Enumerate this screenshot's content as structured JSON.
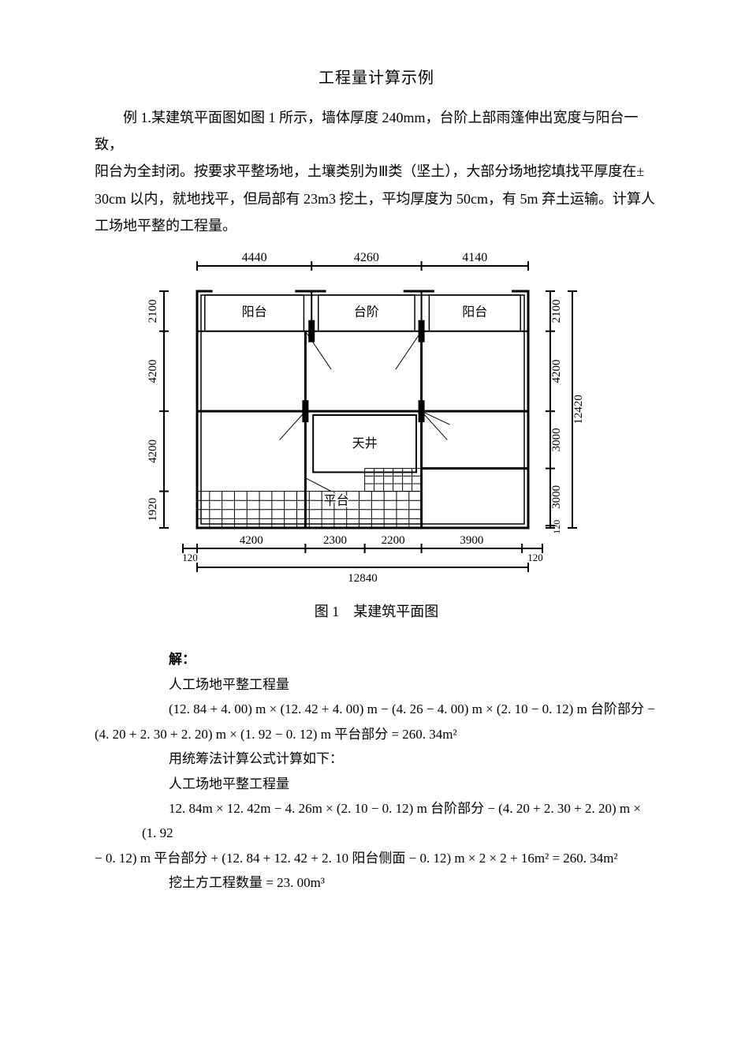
{
  "title": "工程量计算示例",
  "problem": {
    "p1": "例 1.某建筑平面图如图 1 所示，墙体厚度 240mm，台阶上部雨篷伸出宽度与阳台一致，",
    "p2": "阳台为全封闭。按要求平整场地，土壤类别为Ⅲ类（坚土），大部分场地挖填找平厚度在±",
    "p3": "30cm 以内，就地找平，但局部有 23m3 挖土，平均厚度为 50cm，有 5m 弃土运输。计算人",
    "p4": "工场地平整的工程量。"
  },
  "figure": {
    "dims_top": {
      "d1": "4440",
      "d2": "4260",
      "d3": "4140"
    },
    "dims_left": {
      "d1": "2100",
      "d2": "4200",
      "d3": "4200",
      "d4": "1920"
    },
    "dims_right": {
      "d1": "2100",
      "d2": "4200",
      "d3": "3000",
      "d4": "3000",
      "total": "12420",
      "edge": "120"
    },
    "dims_bottom": {
      "off_l": "120",
      "d1": "4200",
      "d2": "2300",
      "d3": "2200",
      "d4": "3900",
      "off_r": "120",
      "total": "12840"
    },
    "labels": {
      "balcony": "阳台",
      "stair": "台阶",
      "court": "天井",
      "platform": "平台"
    },
    "caption": "图 1　某建筑平面图",
    "colors": {
      "stroke": "#000000",
      "fill": "#ffffff",
      "hatch": "#000000"
    }
  },
  "solution": {
    "l0": "解：",
    "l1": "人工场地平整工程量",
    "l2": "(12. 84 + 4. 00) m × (12. 42 + 4. 00) m − (4. 26 − 4. 00) m × (2. 10 − 0. 12) m 台阶部分 −",
    "l3": "(4. 20 + 2. 30 + 2. 20) m × (1. 92 − 0. 12) m 平台部分 = 260. 34m²",
    "l4": "用统筹法计算公式计算如下：",
    "l5": "人工场地平整工程量",
    "l6": "12. 84m × 12. 42m − 4. 26m × (2. 10 − 0. 12) m 台阶部分 − (4. 20 + 2. 30 + 2. 20) m × (1. 92",
    "l7": "− 0. 12) m 平台部分 + (12. 84 + 12. 42 + 2. 10 阳台侧面 − 0. 12) m × 2 × 2 + 16m² = 260. 34m²",
    "l8": "挖土方工程数量 = 23. 00m³"
  }
}
